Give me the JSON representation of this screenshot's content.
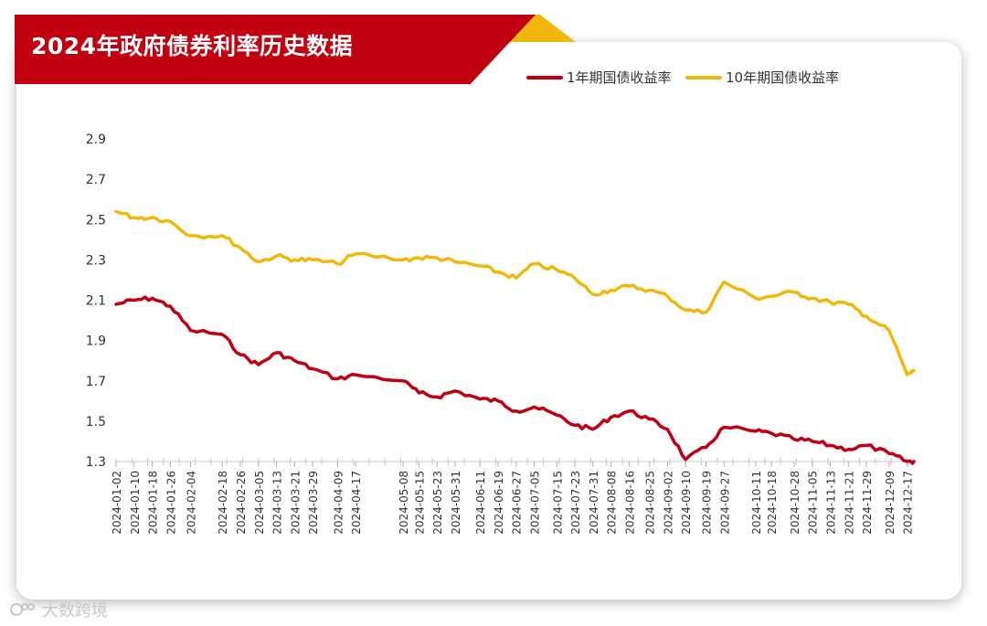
{
  "title": "2024年政府债券利率历史数据",
  "colors": {
    "brand_red": "#c00011",
    "accent_yellow": "#f2b70d",
    "series_1y": "#c00011",
    "series_10y": "#f2b70d"
  },
  "watermark": {
    "text": "大数跨境"
  },
  "chart_data": {
    "type": "line",
    "title": "2024年政府债券利率历史数据",
    "xlabel": "",
    "ylabel": "",
    "ylim": [
      1.3,
      2.9
    ],
    "yticks": [
      1.3,
      1.5,
      1.7,
      1.9,
      2.1,
      2.3,
      2.5,
      2.7,
      2.9
    ],
    "grid": false,
    "legend_position": "top-right",
    "x_tick_labels": [
      "2024-01-02",
      "2024-01-10",
      "2024-01-18",
      "2024-01-26",
      "2024-02-04",
      "2024-02-18",
      "2024-02-26",
      "2024-03-05",
      "2024-03-13",
      "2024-03-21",
      "2024-03-29",
      "2024-04-09",
      "2024-04-17",
      "2024-05-08",
      "2024-05-15",
      "2024-05-23",
      "2024-05-31",
      "2024-06-11",
      "2024-06-19",
      "2024-06-27",
      "2024-07-05",
      "2024-07-15",
      "2024-07-23",
      "2024-07-31",
      "2024-08-08",
      "2024-08-16",
      "2024-08-25",
      "2024-09-02",
      "2024-09-10",
      "2024-09-19",
      "2024-09-27",
      "2024-10-11",
      "2024-10-18",
      "2024-10-28",
      "2024-11-05",
      "2024-11-13",
      "2024-11-21",
      "2024-11-29",
      "2024-12-09",
      "2024-12-17"
    ],
    "x": [
      "2024-01-02",
      "2024-01-10",
      "2024-01-18",
      "2024-01-26",
      "2024-02-04",
      "2024-02-18",
      "2024-02-26",
      "2024-03-05",
      "2024-03-13",
      "2024-03-21",
      "2024-03-29",
      "2024-04-09",
      "2024-04-17",
      "2024-05-08",
      "2024-05-15",
      "2024-05-23",
      "2024-05-31",
      "2024-06-11",
      "2024-06-19",
      "2024-06-27",
      "2024-07-05",
      "2024-07-15",
      "2024-07-23",
      "2024-07-31",
      "2024-08-08",
      "2024-08-16",
      "2024-08-25",
      "2024-09-02",
      "2024-09-10",
      "2024-09-19",
      "2024-09-27",
      "2024-10-11",
      "2024-10-18",
      "2024-10-28",
      "2024-11-05",
      "2024-11-13",
      "2024-11-21",
      "2024-11-29",
      "2024-12-09",
      "2024-12-17",
      "2024-12-20"
    ],
    "series": [
      {
        "name": "1年期国债收益率",
        "color": "#c00011",
        "values": [
          2.08,
          2.1,
          2.11,
          2.07,
          1.95,
          1.93,
          1.83,
          1.78,
          1.84,
          1.8,
          1.76,
          1.71,
          1.73,
          1.7,
          1.64,
          1.62,
          1.65,
          1.61,
          1.6,
          1.55,
          1.57,
          1.53,
          1.48,
          1.46,
          1.52,
          1.55,
          1.51,
          1.46,
          1.31,
          1.37,
          1.47,
          1.45,
          1.44,
          1.41,
          1.4,
          1.38,
          1.36,
          1.38,
          1.34,
          1.3,
          1.3
        ]
      },
      {
        "name": "10年期国债收益率",
        "color": "#f2b70d",
        "values": [
          2.54,
          2.51,
          2.51,
          2.49,
          2.42,
          2.42,
          2.36,
          2.29,
          2.32,
          2.3,
          2.3,
          2.28,
          2.33,
          2.3,
          2.31,
          2.31,
          2.29,
          2.27,
          2.24,
          2.21,
          2.28,
          2.25,
          2.21,
          2.13,
          2.15,
          2.17,
          2.15,
          2.12,
          2.05,
          2.04,
          2.19,
          2.11,
          2.12,
          2.14,
          2.11,
          2.09,
          2.08,
          2.02,
          1.95,
          1.73,
          1.75
        ]
      }
    ]
  }
}
